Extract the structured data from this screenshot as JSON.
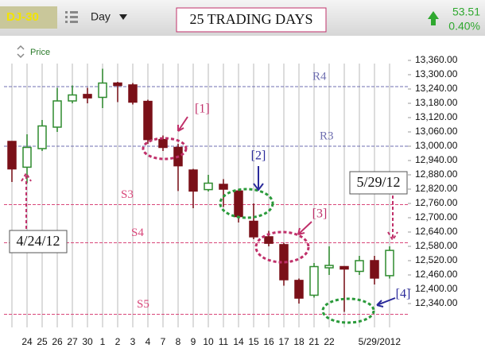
{
  "toolbar": {
    "symbol": "DJ-30",
    "interval": "Day",
    "change": "53.51",
    "change_pct": "0.40%"
  },
  "chart_data": {
    "type": "candlestick",
    "title": "25 TRADING DAYS",
    "panel_label": "Price",
    "categories": [
      null,
      "24",
      "25",
      "26",
      "27",
      "30",
      "1",
      "2",
      "3",
      "4",
      "7",
      "8",
      "9",
      "10",
      "11",
      "14",
      "15",
      "16",
      "17",
      "18",
      "21",
      "22",
      null,
      null,
      null,
      "5/29/2012"
    ],
    "open": [
      13020,
      12912,
      12990,
      13080,
      13190,
      13217,
      13205,
      13265,
      13257,
      13188,
      13028,
      12995,
      12900,
      12818,
      12840,
      12812,
      12685,
      12620,
      12587,
      12437,
      12375,
      12490,
      12495,
      12475,
      12520,
      12457
    ],
    "high": [
      13020,
      13050,
      13110,
      13245,
      13255,
      13245,
      13325,
      13270,
      13265,
      13195,
      13045,
      13010,
      12905,
      12880,
      12862,
      12818,
      12760,
      12645,
      12595,
      12445,
      12510,
      12580,
      12497,
      12540,
      12540,
      12580
    ],
    "low": [
      12850,
      12845,
      12980,
      13060,
      13180,
      13180,
      13160,
      13185,
      13175,
      13010,
      12980,
      12812,
      12740,
      12810,
      12745,
      12680,
      12610,
      12580,
      12415,
      12340,
      12365,
      12460,
      12305,
      12460,
      12420,
      12445
    ],
    "close": [
      12905,
      12995,
      13085,
      13190,
      13215,
      13203,
      13265,
      13255,
      13185,
      13028,
      12995,
      12918,
      12812,
      12845,
      12820,
      12705,
      12620,
      12593,
      12440,
      12363,
      12495,
      12500,
      12485,
      12520,
      12447,
      12563
    ],
    "up_color": "#2e8b2e",
    "down_color": "#7a1018",
    "ylim": [
      12280,
      13420
    ],
    "yticks": [
      {
        "value": 13360,
        "label": "13,360.00"
      },
      {
        "value": 13300,
        "label": "13,300.00"
      },
      {
        "value": 13240,
        "label": "13,240.00"
      },
      {
        "value": 13180,
        "label": "13,180.00"
      },
      {
        "value": 13120,
        "label": "13,120.00"
      },
      {
        "value": 13060,
        "label": "13,060.00"
      },
      {
        "value": 13000,
        "label": "13,000.00"
      },
      {
        "value": 12940,
        "label": "12,940.00"
      },
      {
        "value": 12880,
        "label": "12,880.00"
      },
      {
        "value": 12820,
        "label": "12,820.00"
      },
      {
        "value": 12760,
        "label": "12,760.00"
      },
      {
        "value": 12700,
        "label": "12,700.00"
      },
      {
        "value": 12640,
        "label": "12,640.00"
      },
      {
        "value": 12580,
        "label": "12,580.00"
      },
      {
        "value": 12520,
        "label": "12,520.00"
      },
      {
        "value": 12460,
        "label": "12,460.00"
      },
      {
        "value": 12400,
        "label": "12,400.00"
      },
      {
        "value": 12340,
        "label": "12,340.00"
      }
    ],
    "levels": [
      {
        "label": "R4",
        "value": 13250,
        "color": "#6f6fb0"
      },
      {
        "label": "R3",
        "value": 13000,
        "color": "#6f6fb0"
      },
      {
        "label": "S3",
        "value": 12755,
        "color": "#d9477a"
      },
      {
        "label": "S4",
        "value": 12595,
        "color": "#d9477a"
      },
      {
        "label": "S5",
        "value": 12295,
        "color": "#d9477a"
      }
    ],
    "annotations": [
      "[1]",
      "[2]",
      "[3]",
      "[4]",
      "4/24/12",
      "5/29/12"
    ],
    "grid": true
  }
}
